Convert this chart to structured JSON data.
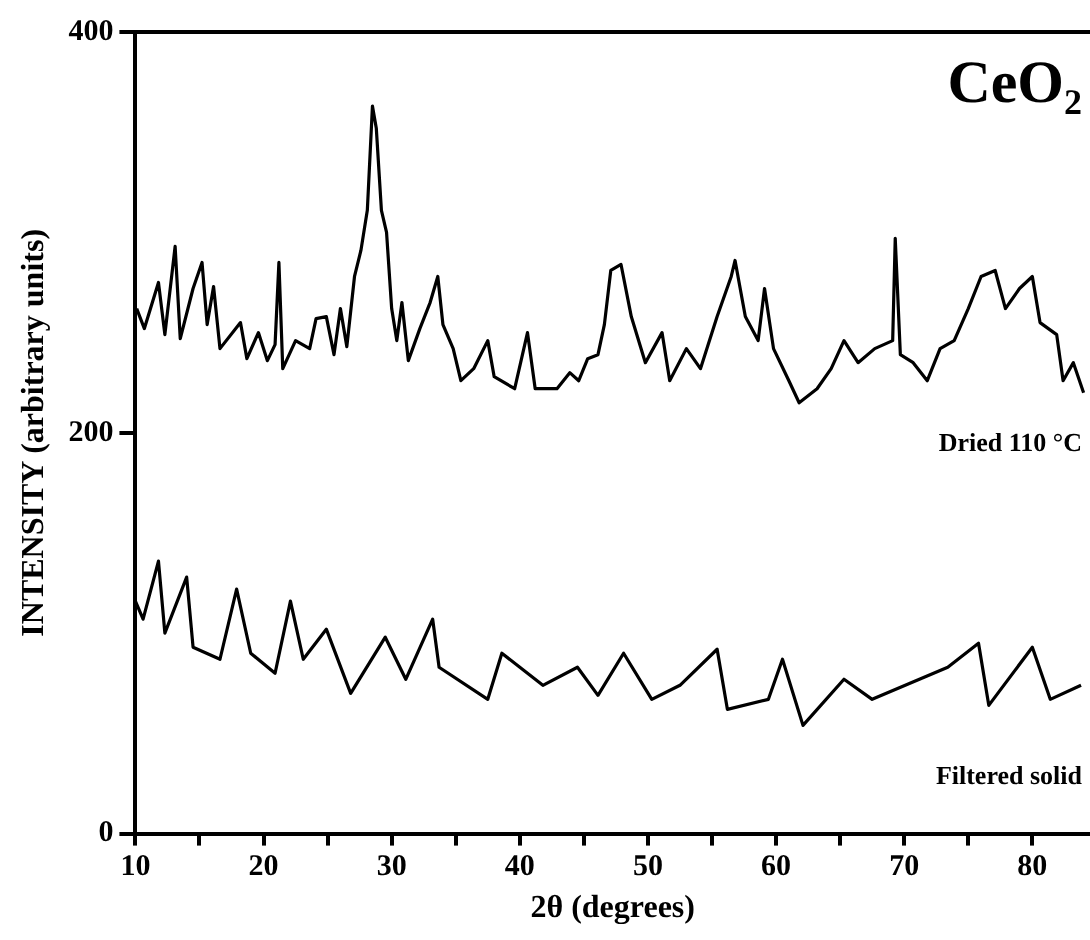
{
  "chart_data": {
    "type": "line",
    "title": "CeO₂",
    "xlabel": "2θ (degrees)",
    "ylabel": "INTENSITY (arbitrary units)",
    "xlim": [
      10,
      84.5
    ],
    "xticks": [
      10,
      {
        "value": 15,
        "label": null
      },
      20,
      {
        "value": 25,
        "label": null
      },
      30,
      {
        "value": 35,
        "label": null
      },
      40,
      {
        "value": 45,
        "label": null
      },
      50,
      {
        "value": 55,
        "label": null
      },
      60,
      {
        "value": 65,
        "label": null
      },
      70,
      {
        "value": 75,
        "label": null
      },
      80
    ],
    "ylim": [
      0,
      400
    ],
    "yticks": [
      0,
      200,
      400
    ],
    "grid": false,
    "legend": false,
    "marker": "none",
    "line_style": "solid",
    "series": [
      {
        "name": "Dried 110 °C",
        "color": "#000000",
        "x": [
          10.1,
          10.7,
          11.8,
          12.3,
          13.1,
          13.5,
          14.5,
          15.2,
          15.6,
          16.1,
          16.6,
          18.2,
          18.7,
          19.6,
          20.3,
          20.9,
          21.2,
          21.5,
          22.5,
          23.6,
          24.1,
          24.9,
          25.5,
          26.0,
          26.5,
          27.1,
          27.6,
          28.1,
          28.5,
          28.8,
          29.2,
          29.6,
          30.0,
          30.4,
          30.8,
          31.3,
          32.2,
          33.0,
          33.6,
          34.0,
          34.8,
          35.4,
          36.4,
          37.5,
          38.0,
          39.6,
          40.6,
          41.2,
          42.9,
          43.9,
          44.6,
          45.3,
          46.1,
          46.6,
          47.1,
          47.9,
          48.7,
          49.8,
          51.1,
          51.7,
          53.0,
          54.1,
          55.4,
          56.5,
          56.8,
          57.6,
          58.6,
          59.1,
          59.8,
          61.0,
          61.8,
          63.2,
          64.3,
          65.3,
          66.4,
          67.7,
          69.1,
          69.3,
          69.7,
          70.7,
          71.8,
          72.8,
          73.9,
          75.0,
          76.0,
          77.1,
          77.9,
          79.0,
          80.0,
          80.6,
          81.9,
          82.4,
          83.2,
          84.0
        ],
        "values": [
          262,
          252,
          275,
          249,
          293,
          247,
          272,
          285,
          254,
          273,
          242,
          255,
          237,
          250,
          236,
          244,
          285,
          232,
          246,
          242,
          257,
          258,
          239,
          262,
          243,
          278,
          291,
          311,
          363,
          352,
          311,
          300,
          262,
          246,
          265,
          236,
          252,
          265,
          278,
          254,
          242,
          226,
          232,
          246,
          228,
          222,
          250,
          222,
          222,
          230,
          226,
          237,
          239,
          254,
          281,
          284,
          258,
          235,
          250,
          226,
          242,
          232,
          258,
          278,
          286,
          258,
          246,
          272,
          242,
          226,
          215,
          222,
          232,
          246,
          235,
          242,
          246,
          297,
          239,
          235,
          226,
          242,
          246,
          262,
          278,
          281,
          262,
          272,
          278,
          255,
          249,
          226,
          235,
          220
        ]
      },
      {
        "name": "Filtered solid",
        "color": "#000000",
        "x": [
          10.0,
          10.6,
          11.8,
          12.3,
          14.0,
          14.5,
          16.6,
          17.9,
          19.0,
          20.9,
          22.1,
          23.1,
          24.9,
          26.8,
          29.5,
          31.1,
          33.2,
          33.7,
          37.5,
          38.6,
          41.8,
          44.5,
          46.1,
          48.1,
          50.3,
          52.5,
          55.4,
          56.2,
          59.4,
          60.5,
          62.1,
          65.3,
          67.5,
          73.4,
          75.8,
          76.6,
          80.0,
          81.4,
          83.8
        ],
        "values": [
          116,
          107,
          136,
          100,
          128,
          93,
          87,
          122,
          90,
          80,
          116,
          87,
          102,
          70,
          98,
          77,
          107,
          83,
          67,
          90,
          74,
          83,
          69,
          90,
          67,
          74,
          92,
          62,
          67,
          87,
          54,
          77,
          67,
          83,
          95,
          64,
          93,
          67,
          74
        ]
      }
    ]
  }
}
